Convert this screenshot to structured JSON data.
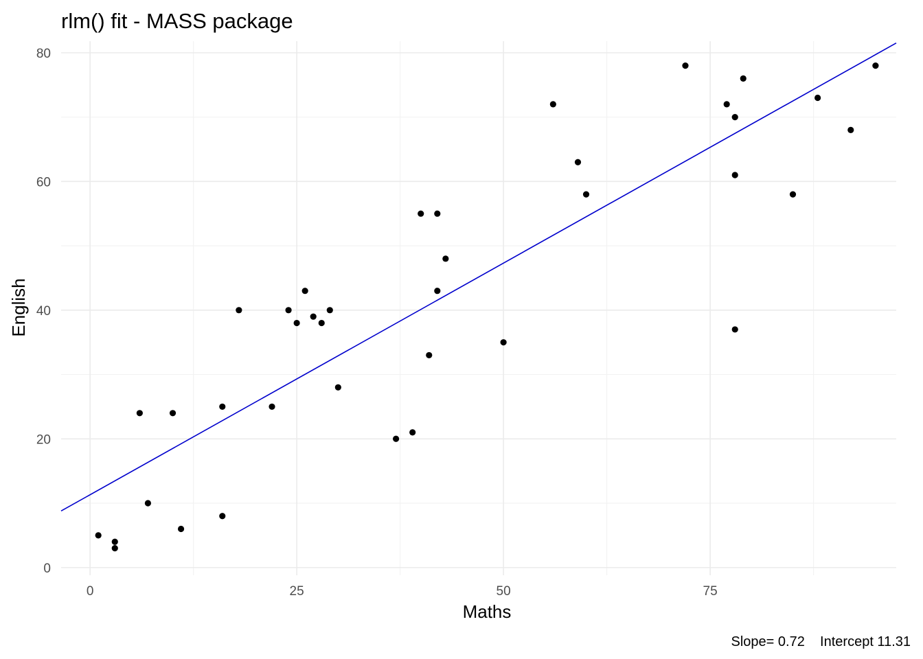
{
  "chart_data": {
    "type": "scatter",
    "title": "rlm() fit - MASS package",
    "xlabel": "Maths",
    "ylabel": "English",
    "xlim": [
      -3.5,
      97.5
    ],
    "ylim": [
      -1.2,
      81.8
    ],
    "x_ticks": [
      0,
      25,
      50,
      75
    ],
    "y_ticks": [
      0,
      20,
      40,
      60,
      80
    ],
    "x_tick_labels": [
      "0",
      "25",
      "50",
      "75"
    ],
    "y_tick_labels": [
      "0",
      "20",
      "40",
      "60",
      "80"
    ],
    "grid": true,
    "series": [
      {
        "type": "points",
        "color": "#000000",
        "points": [
          {
            "x": 1,
            "y": 5
          },
          {
            "x": 3,
            "y": 4
          },
          {
            "x": 3,
            "y": 3
          },
          {
            "x": 6,
            "y": 24
          },
          {
            "x": 7,
            "y": 10
          },
          {
            "x": 10,
            "y": 24
          },
          {
            "x": 11,
            "y": 6
          },
          {
            "x": 16,
            "y": 25
          },
          {
            "x": 16,
            "y": 8
          },
          {
            "x": 18,
            "y": 40
          },
          {
            "x": 22,
            "y": 25
          },
          {
            "x": 24,
            "y": 40
          },
          {
            "x": 25,
            "y": 38
          },
          {
            "x": 26,
            "y": 43
          },
          {
            "x": 27,
            "y": 39
          },
          {
            "x": 28,
            "y": 38
          },
          {
            "x": 29,
            "y": 40
          },
          {
            "x": 30,
            "y": 28
          },
          {
            "x": 37,
            "y": 20
          },
          {
            "x": 39,
            "y": 21
          },
          {
            "x": 40,
            "y": 55
          },
          {
            "x": 41,
            "y": 33
          },
          {
            "x": 42,
            "y": 55
          },
          {
            "x": 42,
            "y": 43
          },
          {
            "x": 43,
            "y": 48
          },
          {
            "x": 50,
            "y": 35
          },
          {
            "x": 56,
            "y": 72
          },
          {
            "x": 59,
            "y": 63
          },
          {
            "x": 60,
            "y": 58
          },
          {
            "x": 72,
            "y": 78
          },
          {
            "x": 77,
            "y": 72
          },
          {
            "x": 78,
            "y": 70
          },
          {
            "x": 78,
            "y": 61
          },
          {
            "x": 78,
            "y": 37
          },
          {
            "x": 79,
            "y": 76
          },
          {
            "x": 85,
            "y": 58
          },
          {
            "x": 88,
            "y": 73
          },
          {
            "x": 92,
            "y": 68
          },
          {
            "x": 95,
            "y": 78
          }
        ]
      },
      {
        "type": "fit-line",
        "color": "#0000cc",
        "slope": 0.72,
        "intercept": 11.31
      }
    ],
    "caption": "Slope= 0.72    Intercept 11.31"
  }
}
